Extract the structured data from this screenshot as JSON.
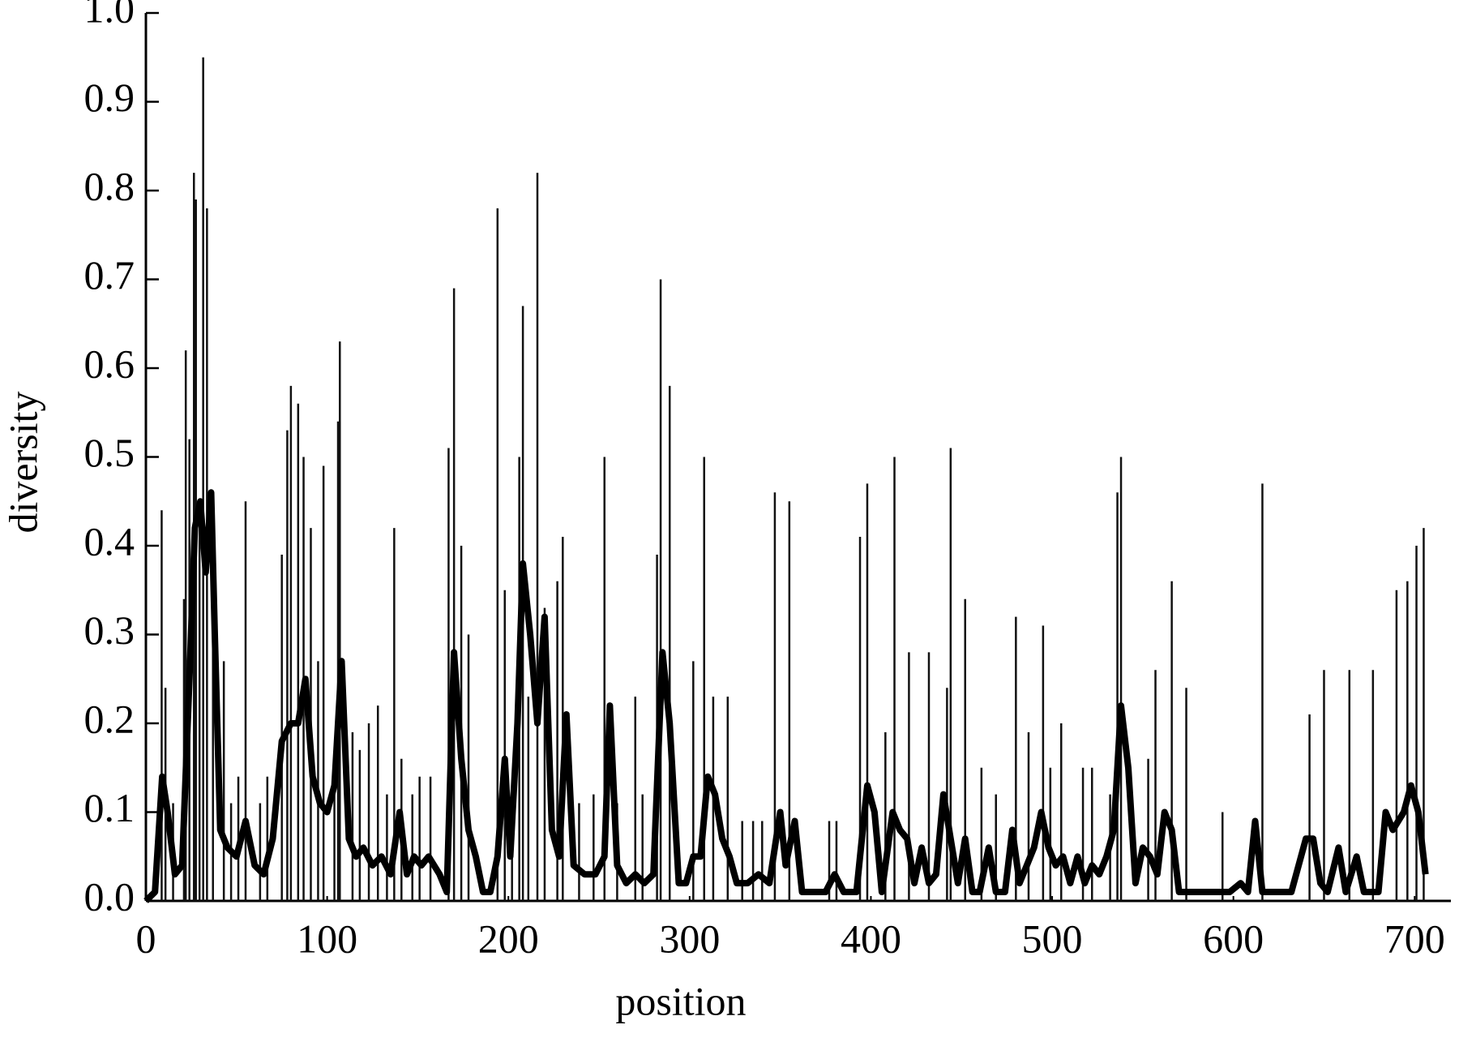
{
  "chart_data": {
    "type": "line",
    "xlabel": "position",
    "ylabel": "diversity",
    "xlim": [
      0,
      720
    ],
    "ylim": [
      0,
      1.0
    ],
    "xticks": [
      0,
      100,
      200,
      300,
      400,
      500,
      600,
      700
    ],
    "yticks": [
      {
        "value": 0,
        "label": "0.0"
      },
      {
        "value": 0.1,
        "label": "0.1"
      },
      {
        "value": 0.2,
        "label": "0.2"
      },
      {
        "value": 0.3,
        "label": "0.3"
      },
      {
        "value": 0.4,
        "label": "0.4"
      },
      {
        "value": 0.5,
        "label": "0.5"
      },
      {
        "value": 0.6,
        "label": "0.6"
      },
      {
        "value": 0.7,
        "label": "0.7"
      },
      {
        "value": 0.8,
        "label": "0.8"
      },
      {
        "value": 0.9,
        "label": "0.9"
      },
      {
        "value": 1.0,
        "label": "1.0"
      }
    ],
    "series": [
      {
        "color": "#111111",
        "line_width": 2.5,
        "drawstyle": "stems",
        "x": [
          8.7,
          10.8,
          15,
          21,
          22,
          24,
          26.5,
          27.6,
          29.6,
          31.6,
          33.7,
          37,
          43,
          47,
          51,
          55,
          63,
          67,
          75,
          78,
          80,
          84,
          87,
          91,
          95,
          98,
          104,
          106,
          107,
          114,
          118,
          123,
          128,
          133,
          137,
          141,
          147,
          151,
          157,
          167,
          170,
          174,
          178,
          194,
          198,
          202,
          206,
          208,
          211,
          216,
          220,
          227,
          230,
          239,
          247,
          253,
          260,
          270,
          274,
          282,
          284,
          289,
          302,
          308,
          313,
          321,
          329,
          335,
          340,
          347,
          355,
          377,
          381,
          394,
          398,
          408,
          413,
          421,
          432,
          442,
          444,
          452,
          461,
          469,
          480,
          487,
          495,
          499,
          505,
          517,
          522,
          532,
          536,
          538,
          553,
          557,
          566,
          574,
          594,
          616,
          642,
          650,
          664,
          677,
          690,
          696,
          701,
          705
        ],
        "values": [
          0.44,
          0.24,
          0.11,
          0.34,
          0.62,
          0.52,
          0.82,
          0.79,
          0.45,
          0.95,
          0.78,
          0.34,
          0.27,
          0.11,
          0.14,
          0.45,
          0.11,
          0.14,
          0.39,
          0.53,
          0.58,
          0.56,
          0.5,
          0.42,
          0.27,
          0.49,
          0.16,
          0.54,
          0.63,
          0.19,
          0.17,
          0.2,
          0.22,
          0.12,
          0.42,
          0.16,
          0.12,
          0.14,
          0.14,
          0.51,
          0.69,
          0.4,
          0.3,
          0.78,
          0.35,
          0.11,
          0.5,
          0.67,
          0.23,
          0.82,
          0.33,
          0.36,
          0.41,
          0.11,
          0.12,
          0.5,
          0.11,
          0.23,
          0.12,
          0.39,
          0.7,
          0.58,
          0.27,
          0.5,
          0.23,
          0.23,
          0.09,
          0.09,
          0.09,
          0.46,
          0.45,
          0.09,
          0.09,
          0.41,
          0.47,
          0.19,
          0.5,
          0.28,
          0.28,
          0.24,
          0.51,
          0.34,
          0.15,
          0.12,
          0.32,
          0.19,
          0.31,
          0.15,
          0.2,
          0.15,
          0.15,
          0.12,
          0.46,
          0.5,
          0.16,
          0.26,
          0.36,
          0.24,
          0.1,
          0.47,
          0.21,
          0.26,
          0.26,
          0.26,
          0.35,
          0.36,
          0.4,
          0.42
        ]
      },
      {
        "color": "#000000",
        "line_width": 8,
        "drawstyle": "line",
        "x": [
          0,
          5,
          9,
          12,
          16,
          20,
          24,
          27,
          30,
          33,
          36,
          38,
          41,
          45,
          50,
          55,
          60,
          65,
          70,
          75,
          80,
          84,
          88,
          92,
          96,
          100,
          104,
          108,
          112,
          116,
          120,
          125,
          130,
          135,
          140,
          144,
          148,
          152,
          156,
          162,
          166,
          170,
          174,
          178,
          182,
          186,
          190,
          194,
          198,
          201,
          205,
          208,
          212,
          216,
          220,
          224,
          228,
          232,
          236,
          242,
          248,
          253,
          256,
          260,
          265,
          270,
          275,
          280,
          285,
          289,
          294,
          298,
          302,
          306,
          310,
          314,
          318,
          322,
          326,
          332,
          338,
          344,
          350,
          353,
          358,
          362,
          370,
          375,
          380,
          385,
          392,
          398,
          402,
          406,
          412,
          416,
          420,
          424,
          428,
          432,
          436,
          440,
          444,
          448,
          452,
          456,
          460,
          465,
          469,
          474,
          478,
          482,
          486,
          490,
          494,
          498,
          502,
          506,
          510,
          514,
          518,
          522,
          526,
          530,
          534,
          538,
          542,
          546,
          550,
          554,
          558,
          562,
          566,
          570,
          575,
          580,
          590,
          598,
          604,
          608,
          612,
          616,
          624,
          632,
          640,
          644,
          648,
          652,
          658,
          662,
          668,
          672,
          680,
          684,
          688,
          694,
          698,
          702,
          706
        ],
        "values": [
          0,
          0.01,
          0.14,
          0.1,
          0.03,
          0.04,
          0.25,
          0.42,
          0.45,
          0.37,
          0.46,
          0.3,
          0.08,
          0.06,
          0.05,
          0.09,
          0.04,
          0.03,
          0.07,
          0.18,
          0.2,
          0.2,
          0.25,
          0.14,
          0.11,
          0.1,
          0.13,
          0.27,
          0.07,
          0.05,
          0.06,
          0.04,
          0.05,
          0.03,
          0.1,
          0.03,
          0.05,
          0.04,
          0.05,
          0.03,
          0.01,
          0.28,
          0.16,
          0.08,
          0.05,
          0.01,
          0.01,
          0.05,
          0.16,
          0.05,
          0.2,
          0.38,
          0.3,
          0.2,
          0.32,
          0.08,
          0.05,
          0.21,
          0.04,
          0.03,
          0.03,
          0.05,
          0.22,
          0.04,
          0.02,
          0.03,
          0.02,
          0.03,
          0.28,
          0.2,
          0.02,
          0.02,
          0.05,
          0.05,
          0.14,
          0.12,
          0.07,
          0.05,
          0.02,
          0.02,
          0.03,
          0.02,
          0.1,
          0.04,
          0.09,
          0.01,
          0.01,
          0.01,
          0.03,
          0.01,
          0.01,
          0.13,
          0.1,
          0.01,
          0.1,
          0.08,
          0.07,
          0.02,
          0.06,
          0.02,
          0.03,
          0.12,
          0.07,
          0.02,
          0.07,
          0.01,
          0.01,
          0.06,
          0.01,
          0.01,
          0.08,
          0.02,
          0.04,
          0.06,
          0.1,
          0.06,
          0.04,
          0.05,
          0.02,
          0.05,
          0.02,
          0.04,
          0.03,
          0.05,
          0.08,
          0.22,
          0.15,
          0.02,
          0.06,
          0.05,
          0.03,
          0.1,
          0.08,
          0.01,
          0.01,
          0.01,
          0.01,
          0.01,
          0.02,
          0.01,
          0.09,
          0.01,
          0.01,
          0.01,
          0.07,
          0.07,
          0.02,
          0.01,
          0.06,
          0.01,
          0.05,
          0.01,
          0.01,
          0.1,
          0.08,
          0.1,
          0.13,
          0.1,
          0.03
        ]
      }
    ]
  }
}
